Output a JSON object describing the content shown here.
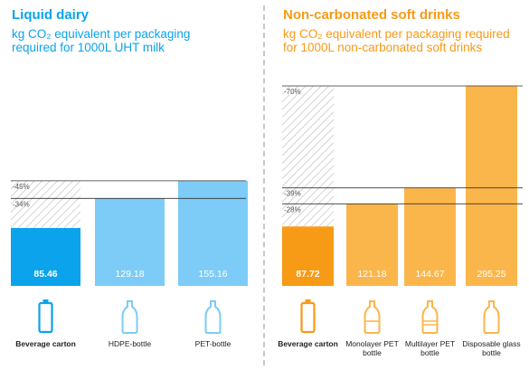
{
  "colors": {
    "dairy_primary": "#0aa3ec",
    "dairy_light": "#7cccf7",
    "soft_primary": "#f79a16",
    "soft_light": "#fbb64b",
    "hatch": "#b9b9b9"
  },
  "chart_data": [
    {
      "type": "bar",
      "title": "Liquid dairy",
      "subtitle": "kg CO₂ equivalent per packaging required for 1000L UHT milk",
      "categories": [
        "Beverage carton",
        "HDPE-bottle",
        "PET-bottle"
      ],
      "values": [
        85.46,
        129.18,
        155.16
      ],
      "value_labels": [
        "85.46",
        "129.18",
        "155.16"
      ],
      "reduction_markers": [
        {
          "label": "-45%",
          "level_value": 155.16
        },
        {
          "label": "-34%",
          "level_value": 129.18
        }
      ],
      "icons": [
        "carton-icon",
        "hdpe-bottle-icon",
        "pet-bottle-icon"
      ],
      "highlight_first": true,
      "ylim": [
        0,
        295.25
      ],
      "grid": false
    },
    {
      "type": "bar",
      "title": "Non-carbonated soft drinks",
      "subtitle": "kg CO₂ equivalent per packaging required for 1000L non-carbonated soft drinks",
      "categories": [
        "Beverage carton",
        "Monolayer PET bottle",
        "Multilayer PET bottle",
        "Disposable glass bottle"
      ],
      "values": [
        87.72,
        121.18,
        144.67,
        295.25
      ],
      "value_labels": [
        "87.72",
        "121.18",
        "144.67",
        "295.25"
      ],
      "reduction_markers": [
        {
          "label": "-70%",
          "level_value": 295.25
        },
        {
          "label": "-39%",
          "level_value": 144.67
        },
        {
          "label": "-28%",
          "level_value": 121.18
        }
      ],
      "icons": [
        "carton-icon",
        "monolayer-pet-bottle-icon",
        "multilayer-pet-bottle-icon",
        "glass-bottle-icon"
      ],
      "highlight_first": true,
      "ylim": [
        0,
        295.25
      ],
      "grid": false
    }
  ]
}
